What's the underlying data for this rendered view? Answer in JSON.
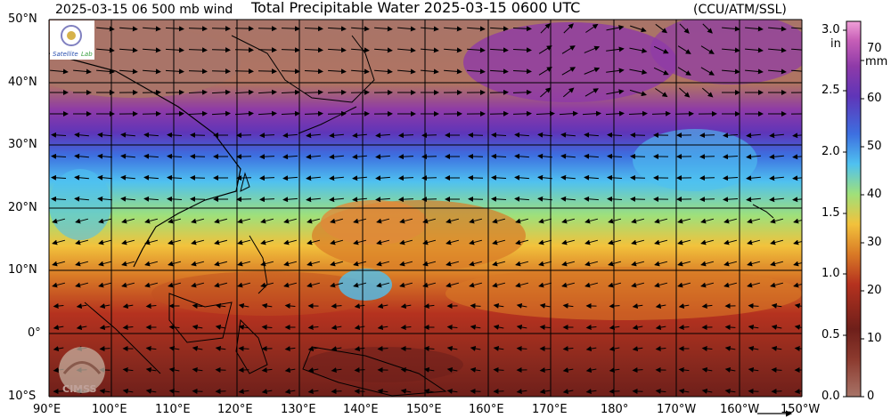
{
  "header": {
    "left_title": "2025-03-15 06 500 mb wind",
    "center_title": "Total Precipitable Water  2025-03-15 0600 UTC",
    "right_title": "(CCU/ATM/SSL)"
  },
  "logos": {
    "top_left": "Satellite Lab",
    "bottom_left": "CIMSS"
  },
  "map": {
    "lat_labels": [
      "50°N",
      "40°N",
      "30°N",
      "20°N",
      "10°N",
      "0°",
      "10°S"
    ],
    "lon_labels": [
      "90°E",
      "100°E",
      "110°E",
      "120°E",
      "130°E",
      "140°E",
      "150°E",
      "160°E",
      "170°E",
      "180°",
      "170°W",
      "160°W",
      "150°W"
    ],
    "wind_field_description": "500 mb wind vectors"
  },
  "colorbar": {
    "in_unit": "in",
    "mm_unit": "mm",
    "in_labels": [
      "3.0",
      "2.5",
      "2.0",
      "1.5",
      "1.0",
      "0.5",
      "0.0"
    ],
    "mm_labels": [
      "70",
      "60",
      "50",
      "40",
      "30",
      "20",
      "10",
      "0"
    ],
    "colors": [
      "#a87468",
      "#6e1f1a",
      "#b5321f",
      "#d97a26",
      "#f2c23c",
      "#9fe07a",
      "#4fc1f0",
      "#3d6fe0",
      "#5f35b8",
      "#8e3aa8",
      "#c75fb7",
      "#f0a0d8"
    ]
  }
}
